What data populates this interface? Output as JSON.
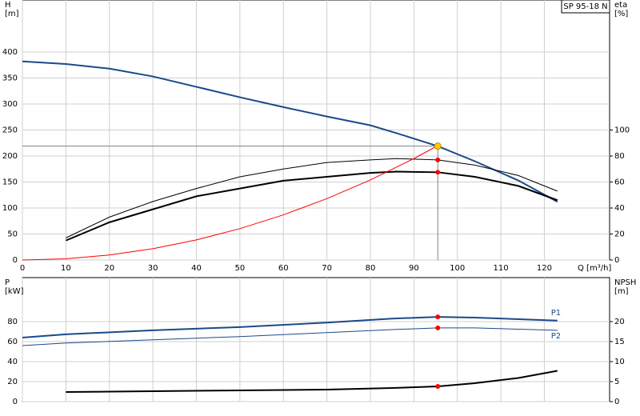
{
  "chart_data": [
    {
      "type": "line",
      "title": "SP 95-18 N",
      "y_label": [
        "H",
        "[m]"
      ],
      "y2_label": [
        "eta",
        "[%]"
      ],
      "x_label": "Q [m³/h]",
      "xlim": [
        0,
        135
      ],
      "xticks": [
        0,
        10,
        20,
        30,
        40,
        50,
        60,
        70,
        80,
        90,
        100,
        110,
        120
      ],
      "x_tick_labels": true,
      "ylim": [
        0,
        500
      ],
      "yticks": [
        0,
        50,
        100,
        150,
        200,
        250,
        300,
        350,
        400
      ],
      "y2lim": [
        0,
        200
      ],
      "y2ticks": [
        0,
        20,
        40,
        60,
        80,
        100
      ],
      "grid": true,
      "duty_q": 95.5,
      "duty_guides": true,
      "series": [
        {
          "color": "#1a4a8a",
          "width": 2,
          "marker_color": "#ffcc00",
          "x": [
            0,
            10,
            20,
            30,
            40,
            50,
            60,
            70,
            80,
            86,
            95.5,
            104,
            114,
            123
          ],
          "values": [
            382,
            377,
            368,
            353,
            333,
            313,
            294,
            276,
            259,
            244,
            219,
            190,
            153,
            112
          ]
        },
        {
          "color": "#000000",
          "width": 1,
          "axis": "y2",
          "marker_color": "#ff0000",
          "x": [
            10,
            20,
            30,
            40,
            50,
            60,
            70,
            80,
            86,
            95.5,
            104,
            114,
            123
          ],
          "values": [
            17,
            33,
            45,
            55,
            64,
            70,
            75,
            77,
            78,
            77,
            73,
            65,
            53
          ]
        },
        {
          "color": "#000000",
          "width": 2,
          "axis": "y2",
          "marker_color": "#ff0000",
          "x": [
            10,
            20,
            30,
            40,
            50,
            60,
            70,
            80,
            86,
            95.5,
            104,
            114,
            123
          ],
          "values": [
            15,
            29,
            39,
            49,
            55,
            61,
            64,
            67,
            68,
            67.5,
            64,
            57,
            46
          ]
        },
        {
          "color": "#ff0000",
          "width": 1,
          "x": [
            0,
            10,
            20,
            30,
            40,
            50,
            60,
            70,
            80,
            90,
            95.5
          ],
          "values": [
            0,
            2.4,
            9.6,
            21.7,
            38.6,
            60.3,
            86.8,
            118,
            154,
            195,
            220
          ]
        }
      ]
    },
    {
      "type": "line",
      "y_label": [
        "P",
        "[kW]"
      ],
      "y2_label": [
        "NPSH",
        "[m]"
      ],
      "xlim": [
        0,
        135
      ],
      "xticks": [
        0,
        10,
        20,
        30,
        40,
        50,
        60,
        70,
        80,
        90,
        100,
        110,
        120
      ],
      "x_tick_labels": false,
      "ylim": [
        0,
        124
      ],
      "yticks": [
        0,
        20,
        40,
        60,
        80
      ],
      "y2lim": [
        0,
        31
      ],
      "y2ticks": [
        0,
        5,
        10,
        15,
        20
      ],
      "grid": true,
      "duty_q": 95.5,
      "duty_guides": false,
      "series": [
        {
          "name": "P1",
          "color": "#1a4a8a",
          "width": 2,
          "marker_color": "#ff0000",
          "x": [
            0,
            10,
            30,
            50,
            70,
            85,
            95.5,
            104,
            123
          ],
          "values": [
            64,
            67.3,
            71.3,
            74.5,
            79,
            83,
            84.7,
            84,
            81
          ]
        },
        {
          "name": "P2",
          "color": "#1a4a8a",
          "width": 1,
          "marker_color": "#ff0000",
          "x": [
            0,
            10,
            30,
            50,
            70,
            85,
            95.5,
            104,
            123
          ],
          "values": [
            56,
            58.6,
            61.8,
            65,
            69,
            72,
            73.7,
            73.7,
            71.3
          ]
        },
        {
          "color": "#000000",
          "width": 2,
          "axis": "y2",
          "marker_color": "#ff0000",
          "x": [
            10,
            30,
            50,
            70,
            85,
            95.5,
            104,
            114,
            123
          ],
          "values": [
            2.4,
            2.6,
            2.8,
            3.0,
            3.4,
            3.8,
            4.6,
            5.9,
            7.7
          ]
        }
      ]
    }
  ]
}
